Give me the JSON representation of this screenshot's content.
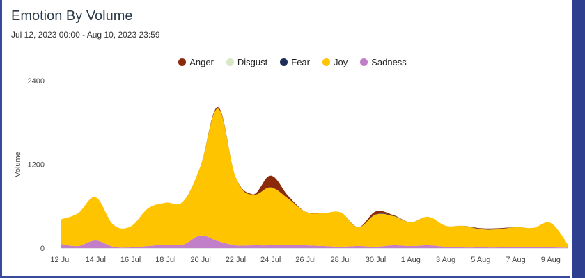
{
  "title": "Emotion By Volume",
  "subtitle": "Jul 12, 2023 00:00 - Aug 10, 2023 23:59",
  "chart_data": {
    "type": "area",
    "stacked": true,
    "title": "Emotion By Volume",
    "ylabel": "Volume",
    "ylim": [
      0,
      2400
    ],
    "yticks": [
      "0",
      "1200",
      "2400"
    ],
    "legend_position": "top",
    "x": [
      "12 Jul",
      "13 Jul",
      "14 Jul",
      "15 Jul",
      "16 Jul",
      "17 Jul",
      "18 Jul",
      "19 Jul",
      "20 Jul",
      "21 Jul",
      "22 Jul",
      "23 Jul",
      "24 Jul",
      "25 Jul",
      "26 Jul",
      "27 Jul",
      "28 Jul",
      "29 Jul",
      "30 Jul",
      "31 Jul",
      "1 Aug",
      "2 Aug",
      "3 Aug",
      "4 Aug",
      "5 Aug",
      "6 Aug",
      "7 Aug",
      "8 Aug",
      "9 Aug",
      "10 Aug"
    ],
    "xticks": [
      "12 Jul",
      "14 Jul",
      "16 Jul",
      "18 Jul",
      "20 Jul",
      "22 Jul",
      "24 Jul",
      "26 Jul",
      "28 Jul",
      "30 Jul",
      "1 Aug",
      "3 Aug",
      "5 Aug",
      "7 Aug",
      "9 Aug"
    ],
    "series": [
      {
        "name": "Sadness",
        "color": "#c17fc9",
        "values": [
          60,
          30,
          110,
          20,
          10,
          30,
          50,
          50,
          180,
          100,
          40,
          40,
          40,
          50,
          40,
          30,
          20,
          30,
          20,
          40,
          30,
          40,
          20,
          10,
          10,
          10,
          20,
          10,
          10,
          5
        ]
      },
      {
        "name": "Joy",
        "color": "#ffc400",
        "values": [
          350,
          470,
          620,
          320,
          300,
          540,
          600,
          620,
          1000,
          1900,
          980,
          730,
          830,
          660,
          480,
          470,
          490,
          270,
          460,
          420,
          340,
          410,
          300,
          310,
          260,
          260,
          280,
          280,
          350,
          40
        ]
      },
      {
        "name": "Fear",
        "color": "#1f2d5a",
        "values": [
          0,
          0,
          0,
          0,
          0,
          0,
          0,
          0,
          0,
          0,
          0,
          0,
          0,
          0,
          0,
          0,
          0,
          0,
          5,
          5,
          0,
          0,
          0,
          0,
          5,
          5,
          0,
          0,
          0,
          0
        ]
      },
      {
        "name": "Disgust",
        "color": "#d8e7c4",
        "values": [
          0,
          0,
          0,
          0,
          0,
          0,
          0,
          0,
          0,
          0,
          0,
          0,
          0,
          0,
          0,
          0,
          0,
          0,
          0,
          0,
          0,
          0,
          0,
          0,
          0,
          0,
          0,
          0,
          0,
          0
        ]
      },
      {
        "name": "Anger",
        "color": "#8b2a0b",
        "values": [
          0,
          0,
          0,
          0,
          0,
          0,
          0,
          0,
          0,
          20,
          0,
          0,
          170,
          40,
          0,
          0,
          0,
          0,
          40,
          10,
          0,
          0,
          0,
          0,
          10,
          10,
          0,
          0,
          0,
          0
        ]
      }
    ],
    "legend": [
      {
        "name": "Anger",
        "color": "#8b2a0b"
      },
      {
        "name": "Disgust",
        "color": "#d8e7c4"
      },
      {
        "name": "Fear",
        "color": "#1f2d5a"
      },
      {
        "name": "Joy",
        "color": "#ffc400"
      },
      {
        "name": "Sadness",
        "color": "#c17fc9"
      }
    ]
  }
}
